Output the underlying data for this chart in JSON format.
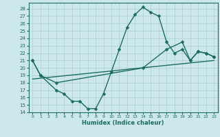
{
  "title": "",
  "xlabel": "Humidex (Indice chaleur)",
  "bg_color": "#cce8ec",
  "grid_color": "#aacfd4",
  "line_color": "#1a6b60",
  "markersize": 2.5,
  "linewidth": 1.0,
  "xlim": [
    -0.5,
    23.5
  ],
  "ylim": [
    14,
    28.8
  ],
  "yticks": [
    14,
    15,
    16,
    17,
    18,
    19,
    20,
    21,
    22,
    23,
    24,
    25,
    26,
    27,
    28
  ],
  "xticks": [
    0,
    1,
    2,
    3,
    4,
    5,
    6,
    7,
    8,
    9,
    10,
    11,
    12,
    13,
    14,
    15,
    16,
    17,
    18,
    19,
    20,
    21,
    22,
    23
  ],
  "line1_x": [
    0,
    1,
    3,
    4,
    5,
    6,
    7,
    8,
    9,
    10,
    11,
    12,
    13,
    14,
    15,
    16,
    17,
    18,
    19,
    20,
    21,
    22,
    23
  ],
  "line1_y": [
    21,
    19,
    17,
    16.5,
    15.5,
    15.5,
    14.5,
    14.5,
    16.5,
    19.5,
    22.5,
    25.5,
    27.2,
    28.2,
    27.5,
    27.0,
    23.5,
    22.0,
    22.5,
    21.0,
    22.2,
    22.0,
    21.5
  ],
  "line2_x": [
    0,
    1,
    3,
    14,
    17,
    19,
    20,
    21,
    22,
    23
  ],
  "line2_y": [
    21,
    19,
    18,
    20.0,
    22.5,
    23.5,
    21.0,
    22.2,
    22.0,
    21.5
  ],
  "line3_x": [
    0,
    23
  ],
  "line3_y": [
    18.5,
    21.0
  ]
}
